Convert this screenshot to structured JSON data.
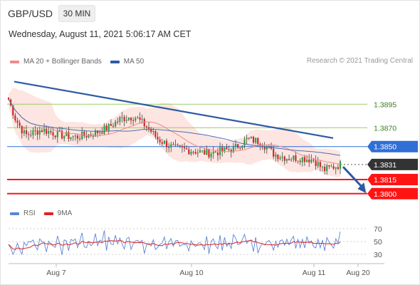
{
  "header": {
    "symbol": "GBP/USD",
    "timeframe": "30 MIN",
    "datetime": "Wednesday, August 11, 2021 5:06:17 AM CET"
  },
  "legend_main": [
    {
      "label": "MA 20 + Bollinger Bands",
      "color": "#f08a8a"
    },
    {
      "label": "MA 50",
      "color": "#2e5aa3"
    }
  ],
  "legend_rsi": [
    {
      "label": "RSI",
      "color": "#5b85d6"
    },
    {
      "label": "9MA",
      "color": "#e02020"
    }
  ],
  "credit": "Research © 2021 Trading Central",
  "colors": {
    "bull_candle": "#2ea043",
    "bear_candle": "#d02828",
    "trendline": "#2e5aa3",
    "support": "#ff1414",
    "resistance": "#9ccc65",
    "pivot": "#2f6fd6",
    "current": "#333333",
    "bands_fill": "#fde0dc",
    "arrow": "#2e5aa3"
  },
  "chart_data": [
    {
      "type": "candlestick",
      "series": [
        {
          "name": "MA 20 + Bollinger Bands"
        },
        {
          "name": "MA 50"
        }
      ],
      "x_labels": [
        "Aug 7",
        "Aug 10",
        "Aug 11",
        "Aug 20"
      ],
      "ylim": [
        1.379,
        1.393
      ],
      "price_levels": [
        {
          "value": 1.3895,
          "label": "1.3895",
          "role": "resistance"
        },
        {
          "value": 1.387,
          "label": "1.3870",
          "role": "resistance"
        },
        {
          "value": 1.385,
          "label": "1.3850",
          "role": "pivot"
        },
        {
          "value": 1.3831,
          "label": "1.3831",
          "role": "current"
        },
        {
          "value": 1.3815,
          "label": "1.3815",
          "role": "support"
        },
        {
          "value": 1.38,
          "label": "1.3800",
          "role": "support"
        }
      ],
      "trendline": {
        "from": [
          0,
          1.3919
        ],
        "to": [
          1.0,
          1.3859
        ]
      },
      "forecast_arrow": {
        "from": [
          1.0,
          1.383
        ],
        "to": [
          1.08,
          1.3802
        ]
      }
    },
    {
      "type": "line",
      "series": [
        {
          "name": "RSI"
        },
        {
          "name": "9MA"
        }
      ],
      "yticks": [
        70,
        50,
        30
      ],
      "ylim": [
        20,
        80
      ]
    }
  ]
}
